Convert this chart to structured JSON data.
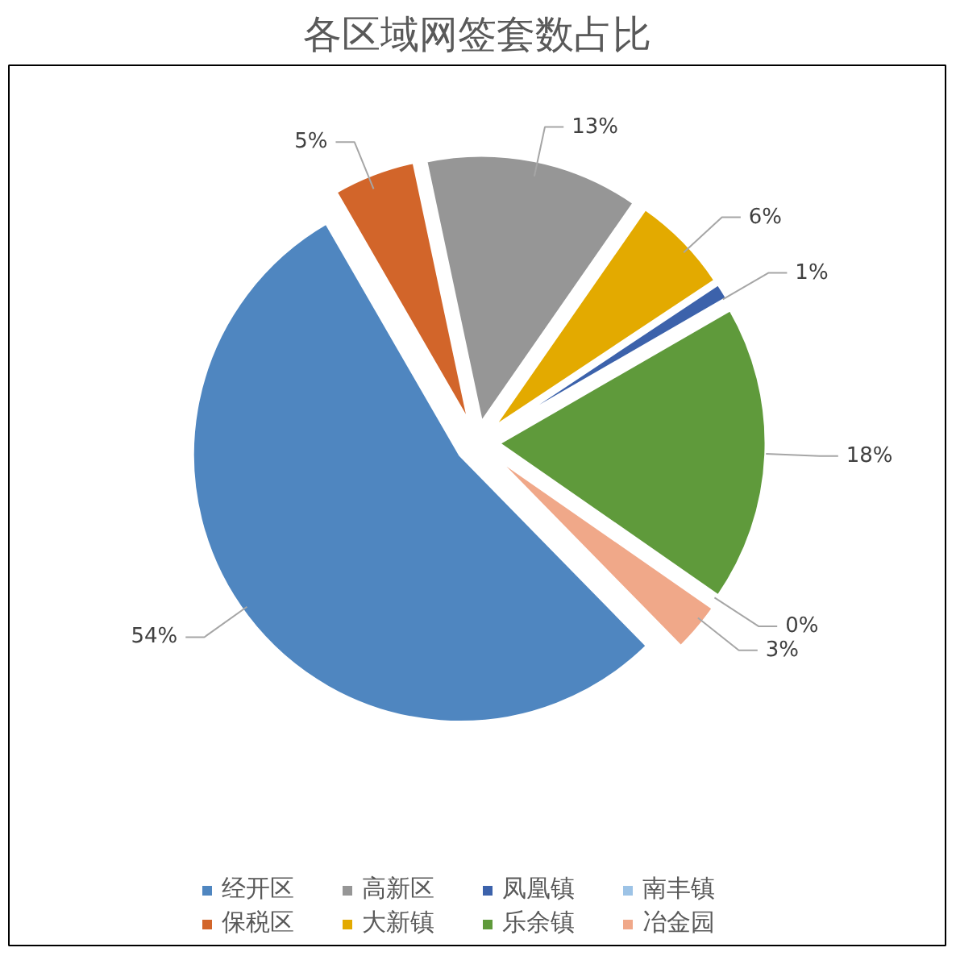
{
  "chart_data": {
    "type": "pie",
    "title": "各区域网签套数占比",
    "categories": [
      "经开区",
      "保税区",
      "高新区",
      "大新镇",
      "凤凰镇",
      "乐余镇",
      "南丰镇",
      "冶金园"
    ],
    "values": [
      54,
      5,
      13,
      6,
      1,
      18,
      0,
      3
    ],
    "colors": [
      "#4f86c0",
      "#d2652a",
      "#969696",
      "#e3aa00",
      "#3c62ab",
      "#5f9a3b",
      "#9dc3e6",
      "#f0a889"
    ],
    "value_labels": [
      "54%",
      "5%",
      "13%",
      "6%",
      "1%",
      "18%",
      "0%",
      "3%"
    ],
    "legend": "bottom"
  }
}
